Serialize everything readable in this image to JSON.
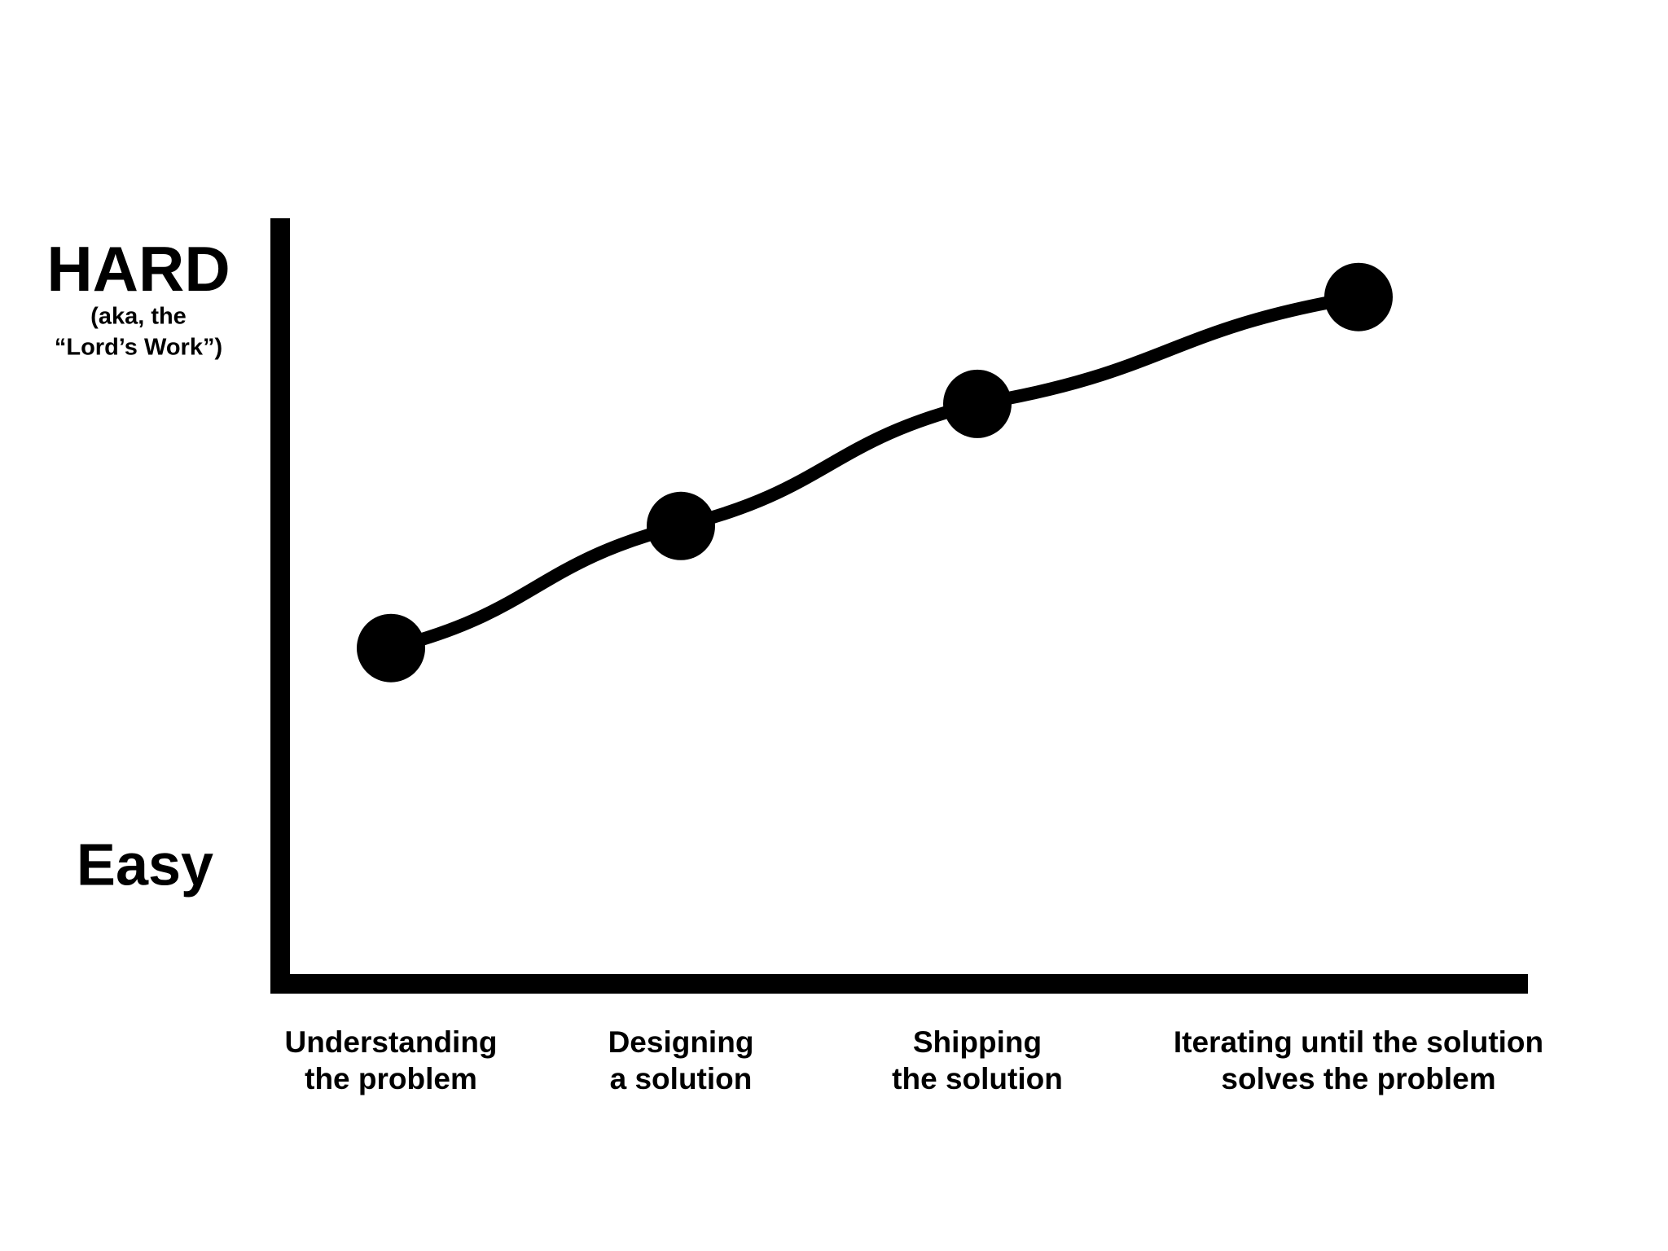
{
  "chart_data": {
    "type": "line",
    "categories": [
      [
        "Understanding",
        "the problem"
      ],
      [
        "Designing",
        "a solution"
      ],
      [
        "Shipping",
        "the solution"
      ],
      [
        "Iterating until the solution",
        "solves the problem"
      ]
    ],
    "values": [
      44,
      60,
      76,
      90
    ],
    "color": "#000000",
    "ylim": [
      0,
      100
    ],
    "yticks": [
      {
        "value": 15,
        "label": "Easy"
      },
      {
        "value": 93,
        "label": "HARD"
      }
    ],
    "annotations": [
      "(aka, the",
      "“Lord’s Work”)"
    ]
  }
}
